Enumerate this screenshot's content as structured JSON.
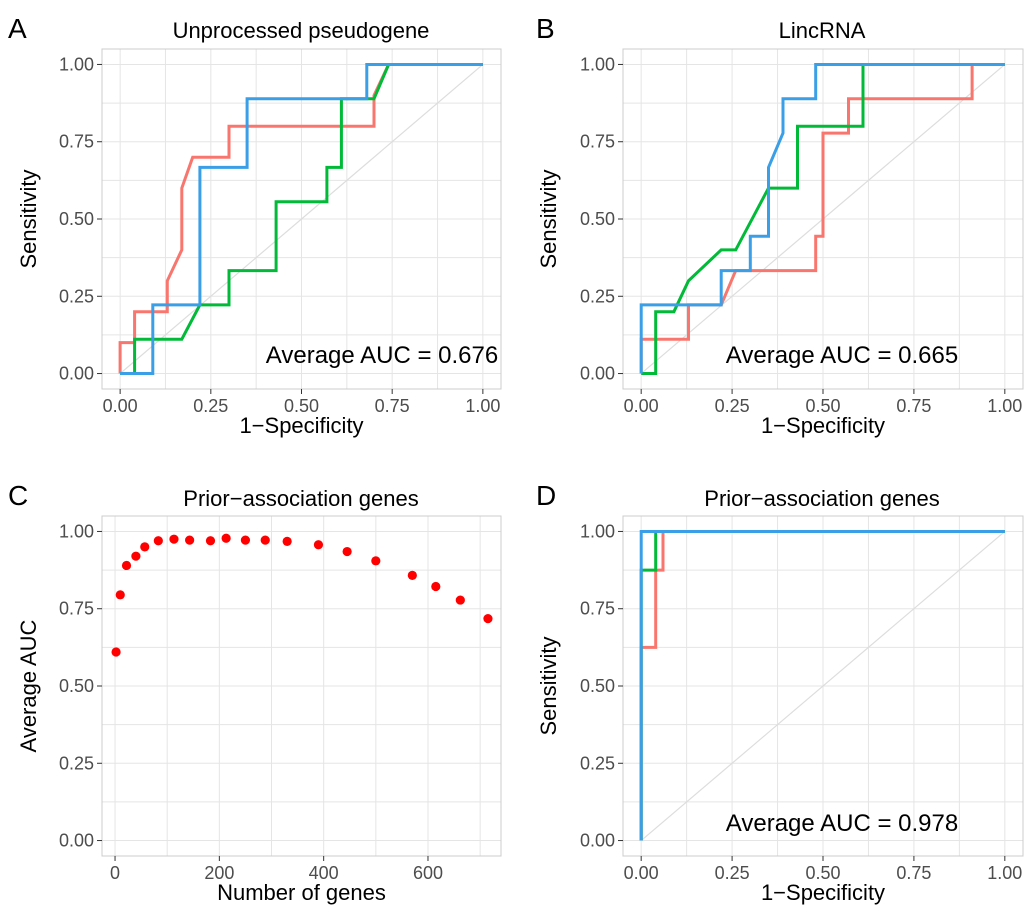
{
  "chart_data": [
    {
      "type": "line",
      "panel": "A",
      "title": "Unprocessed pseudogene",
      "xlabel": "1−Specificity",
      "ylabel": "Sensitivity",
      "xlim": [
        0,
        1
      ],
      "ylim": [
        0,
        1
      ],
      "xticks": [
        "0.00",
        "0.25",
        "0.50",
        "0.75",
        "1.00"
      ],
      "yticks": [
        "0.00",
        "0.25",
        "0.50",
        "0.75",
        "1.00"
      ],
      "grid": true,
      "diagonal": true,
      "annotation": "Average AUC = 0.676",
      "series": [
        {
          "color": "#f8766d",
          "x": [
            0,
            0,
            0.04,
            0.04,
            0.13,
            0.13,
            0.17,
            0.17,
            0.2,
            0.2,
            0.3,
            0.3,
            0.7,
            0.7,
            0.74,
            1
          ],
          "y": [
            0,
            0.1,
            0.1,
            0.2,
            0.2,
            0.3,
            0.4,
            0.6,
            0.7,
            0.7,
            0.7,
            0.8,
            0.8,
            0.9,
            1,
            1
          ]
        },
        {
          "color": "#00ba38",
          "x": [
            0,
            0.04,
            0.04,
            0.17,
            0.22,
            0.3,
            0.3,
            0.43,
            0.43,
            0.57,
            0.57,
            0.61,
            0.61,
            0.7,
            0.74,
            1
          ],
          "y": [
            0,
            0,
            0.111,
            0.111,
            0.222,
            0.222,
            0.333,
            0.333,
            0.556,
            0.556,
            0.667,
            0.667,
            0.889,
            0.889,
            1,
            1
          ]
        },
        {
          "color": "#3a9fe6",
          "x": [
            0,
            0.09,
            0.09,
            0.22,
            0.22,
            0.35,
            0.35,
            0.68,
            0.68,
            1
          ],
          "y": [
            0,
            0,
            0.222,
            0.222,
            0.667,
            0.667,
            0.889,
            0.889,
            1,
            1
          ]
        }
      ]
    },
    {
      "type": "line",
      "panel": "B",
      "title": "LincRNA",
      "xlabel": "1−Specificity",
      "ylabel": "Sensitivity",
      "xlim": [
        0,
        1
      ],
      "ylim": [
        0,
        1
      ],
      "xticks": [
        "0.00",
        "0.25",
        "0.50",
        "0.75",
        "1.00"
      ],
      "yticks": [
        "0.00",
        "0.25",
        "0.50",
        "0.75",
        "1.00"
      ],
      "grid": true,
      "diagonal": true,
      "annotation": "Average AUC = 0.665",
      "series": [
        {
          "color": "#f8766d",
          "x": [
            0,
            0,
            0.13,
            0.13,
            0.22,
            0.26,
            0.39,
            0.43,
            0.48,
            0.48,
            0.5,
            0.5,
            0.57,
            0.57,
            0.61,
            0.61,
            0.91,
            0.91,
            1
          ],
          "y": [
            0,
            0.111,
            0.111,
            0.222,
            0.222,
            0.333,
            0.333,
            0.333,
            0.333,
            0.444,
            0.444,
            0.778,
            0.778,
            0.889,
            0.889,
            0.889,
            0.889,
            1,
            1
          ]
        },
        {
          "color": "#00ba38",
          "x": [
            0,
            0.04,
            0.04,
            0.09,
            0.13,
            0.22,
            0.26,
            0.35,
            0.35,
            0.43,
            0.43,
            0.61,
            0.61,
            1
          ],
          "y": [
            0,
            0,
            0.2,
            0.2,
            0.3,
            0.4,
            0.4,
            0.6,
            0.6,
            0.6,
            0.8,
            0.8,
            1,
            1
          ]
        },
        {
          "color": "#3a9fe6",
          "x": [
            0,
            0,
            0.22,
            0.22,
            0.3,
            0.3,
            0.35,
            0.35,
            0.39,
            0.39,
            0.48,
            0.48,
            1
          ],
          "y": [
            0,
            0.222,
            0.222,
            0.333,
            0.333,
            0.444,
            0.444,
            0.667,
            0.778,
            0.889,
            0.889,
            1,
            1
          ]
        }
      ]
    },
    {
      "type": "scatter",
      "panel": "C",
      "title": "Prior−association genes",
      "xlabel": "Number of genes",
      "ylabel": "Average AUC",
      "xlim": [
        -25,
        740
      ],
      "ylim": [
        0,
        1
      ],
      "xticks": [
        "0",
        "200",
        "400",
        "600"
      ],
      "xtick_values": [
        0,
        200,
        400,
        600
      ],
      "yticks": [
        "0.00",
        "0.25",
        "0.50",
        "0.75",
        "1.00"
      ],
      "grid": true,
      "series": [
        {
          "color": "#ff0000",
          "x": [
            2,
            10,
            22,
            40,
            57,
            83,
            113,
            143,
            183,
            213,
            250,
            288,
            330,
            390,
            445,
            500,
            570,
            615,
            662,
            715
          ],
          "y": [
            0.61,
            0.795,
            0.89,
            0.92,
            0.95,
            0.97,
            0.975,
            0.972,
            0.97,
            0.978,
            0.972,
            0.972,
            0.968,
            0.957,
            0.935,
            0.905,
            0.858,
            0.822,
            0.778,
            0.718
          ]
        }
      ]
    },
    {
      "type": "line",
      "panel": "D",
      "title": "Prior−association genes",
      "xlabel": "1−Specificity",
      "ylabel": "Sensitivity",
      "xlim": [
        0,
        1
      ],
      "ylim": [
        0,
        1
      ],
      "xticks": [
        "0.00",
        "0.25",
        "0.50",
        "0.75",
        "1.00"
      ],
      "yticks": [
        "0.00",
        "0.25",
        "0.50",
        "0.75",
        "1.00"
      ],
      "grid": true,
      "diagonal": true,
      "annotation": "Average AUC = 0.978",
      "series": [
        {
          "color": "#f8766d",
          "x": [
            0,
            0,
            0.04,
            0.04,
            0.06,
            0.06,
            1
          ],
          "y": [
            0,
            0.625,
            0.625,
            0.875,
            0.875,
            1,
            1
          ]
        },
        {
          "color": "#00ba38",
          "x": [
            0,
            0,
            0.04,
            0.04,
            1
          ],
          "y": [
            0,
            0.875,
            0.875,
            1,
            1
          ]
        },
        {
          "color": "#3a9fe6",
          "x": [
            0,
            0,
            1
          ],
          "y": [
            0,
            1,
            1
          ]
        }
      ]
    }
  ]
}
